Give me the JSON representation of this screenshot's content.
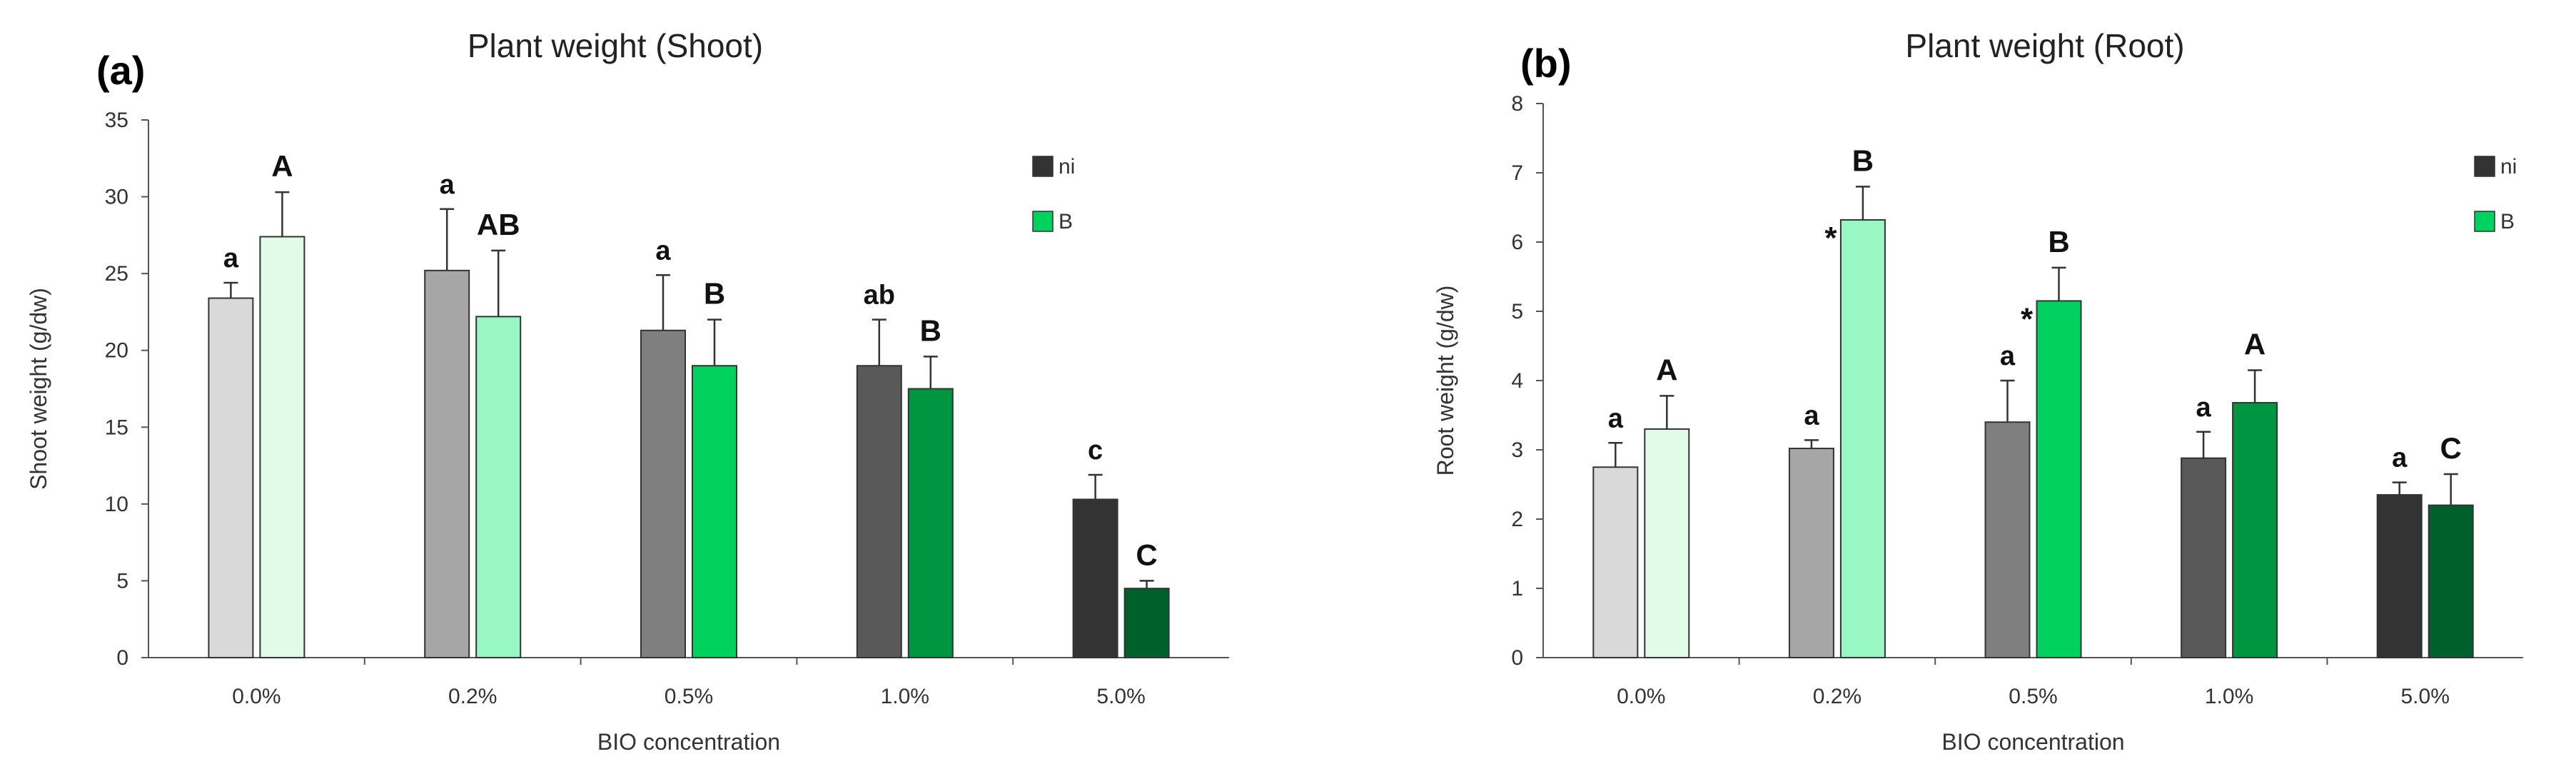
{
  "chart_data": [
    {
      "type": "bar",
      "panel_label": "(a)",
      "title": "Plant weight (Shoot)",
      "xlabel": "BIO concentration",
      "ylabel": "Shoot weight (g/dw)",
      "ylim": [
        0,
        35
      ],
      "yticks": [
        0,
        5,
        10,
        15,
        20,
        25,
        30,
        35
      ],
      "categories": [
        "0.0%",
        "0.2%",
        "0.5%",
        "1.0%",
        "5.0%"
      ],
      "legend_position": "top-right",
      "series": [
        {
          "name": "ni",
          "values": [
            23.4,
            25.2,
            21.3,
            19.0,
            10.3
          ],
          "errors": [
            1.0,
            4.0,
            3.6,
            3.0,
            1.6
          ],
          "letters": [
            "a",
            "a",
            "a",
            "ab",
            "c"
          ],
          "stars": [
            "",
            "",
            "",
            "",
            ""
          ],
          "colors": [
            "#d9d9d9",
            "#a6a6a6",
            "#7f7f7f",
            "#595959",
            "#333333"
          ]
        },
        {
          "name": "B",
          "values": [
            27.4,
            22.2,
            19.0,
            17.5,
            4.5
          ],
          "errors": [
            2.9,
            4.3,
            3.0,
            2.1,
            0.5
          ],
          "letters": [
            "A",
            "AB",
            "B",
            "B",
            "C"
          ],
          "stars": [
            "",
            "",
            "",
            "",
            ""
          ],
          "colors": [
            "#e2fbe9",
            "#99f7c4",
            "#00d15f",
            "#009641",
            "#00602b"
          ]
        }
      ],
      "legend_colors": [
        "#333333",
        "#00d15f"
      ]
    },
    {
      "type": "bar",
      "panel_label": "(b)",
      "title": "Plant weight (Root)",
      "xlabel": "BIO concentration",
      "ylabel": "Root weight (g/dw)",
      "ylim": [
        0,
        8
      ],
      "yticks": [
        0,
        1,
        2,
        3,
        4,
        5,
        6,
        7,
        8
      ],
      "categories": [
        "0.0%",
        "0.2%",
        "0.5%",
        "1.0%",
        "5.0%"
      ],
      "legend_position": "top-right",
      "series": [
        {
          "name": "ni",
          "values": [
            2.75,
            3.02,
            3.4,
            2.88,
            2.35
          ],
          "errors": [
            0.35,
            0.12,
            0.6,
            0.38,
            0.18
          ],
          "letters": [
            "a",
            "a",
            "a",
            "a",
            "a"
          ],
          "stars": [
            "",
            "",
            "",
            "",
            ""
          ],
          "colors": [
            "#d9d9d9",
            "#a6a6a6",
            "#7f7f7f",
            "#595959",
            "#333333"
          ]
        },
        {
          "name": "B",
          "values": [
            3.3,
            6.32,
            5.15,
            3.68,
            2.2
          ],
          "errors": [
            0.48,
            0.48,
            0.48,
            0.47,
            0.45
          ],
          "letters": [
            "A",
            "B",
            "B",
            "A",
            "C"
          ],
          "stars": [
            "",
            "*",
            "*",
            "",
            ""
          ],
          "colors": [
            "#e2fbe9",
            "#99f7c4",
            "#00d15f",
            "#009641",
            "#00602b"
          ]
        }
      ],
      "legend_colors": [
        "#333333",
        "#00d15f"
      ]
    }
  ]
}
